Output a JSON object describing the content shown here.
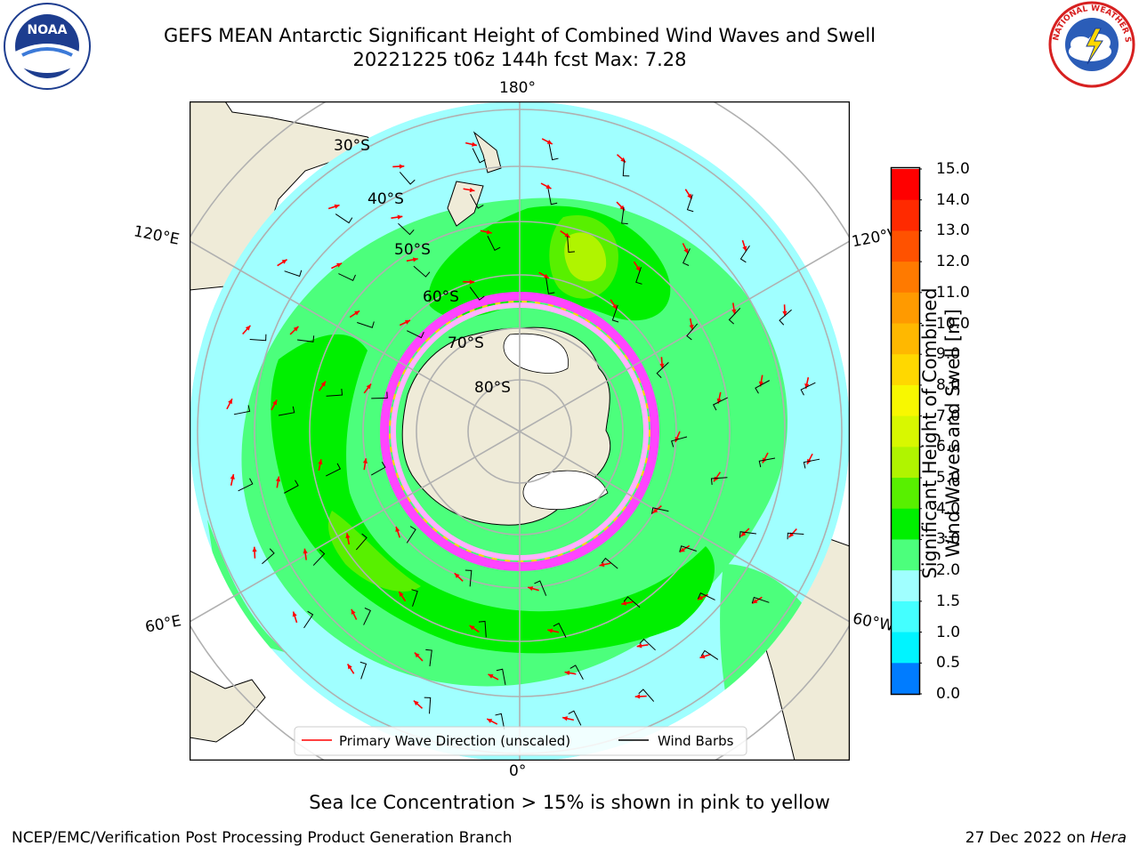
{
  "header": {
    "title_line1": "GEFS MEAN Antarctic Significant Height of Combined Wind Waves and Swell",
    "title_line2": "20221225 t06z 144h fcst   Max: 7.28"
  },
  "logos": {
    "left": "noaa-logo",
    "right": "national-weather-service-logo",
    "left_text": "NOAA",
    "right_text": "NATIONAL WEATHER SERVICE"
  },
  "map": {
    "projection": "south-polar-stereographic",
    "longitude_labels": [
      "180°",
      "120°E",
      "120°W",
      "60°E",
      "60°W",
      "0°"
    ],
    "latitude_labels": [
      "30°S",
      "40°S",
      "50°S",
      "60°S",
      "70°S",
      "80°S"
    ],
    "field_max": 7.28,
    "land_color": "#efebd8",
    "legend": {
      "wave_direction_label": "Primary Wave Direction (unscaled)",
      "wind_barbs_label": "Wind Barbs"
    }
  },
  "colorbar": {
    "label": "Significant Height of Combined Wind Waves and Swell [m]",
    "label_line1": "Significant Height of Combined",
    "label_line2": "Wind Waves and Swell [m]",
    "ticks": [
      "15.0",
      "14.0",
      "13.0",
      "12.0",
      "11.0",
      "10.0",
      "9.0",
      "8.0",
      "7.0",
      "6.0",
      "5.0",
      "4.0",
      "3.0",
      "2.0",
      "1.5",
      "1.0",
      "0.5",
      "0.0"
    ],
    "colors": [
      "#ff0000",
      "#ff2a00",
      "#ff5200",
      "#ff7a00",
      "#ff9a00",
      "#ffb800",
      "#ffd800",
      "#f8f800",
      "#d8f800",
      "#b0f400",
      "#58f000",
      "#00f000",
      "#4cff7c",
      "#a0ffff",
      "#44ffff",
      "#00f4ff",
      "#007cff",
      "#0000ff"
    ]
  },
  "caption": "Sea Ice Concentration > 15% is shown in pink to yellow",
  "footer": {
    "left": "NCEP/EMC/Verification Post Processing Product Generation Branch",
    "date": "27 Dec 2022 on",
    "host": "Hera"
  }
}
